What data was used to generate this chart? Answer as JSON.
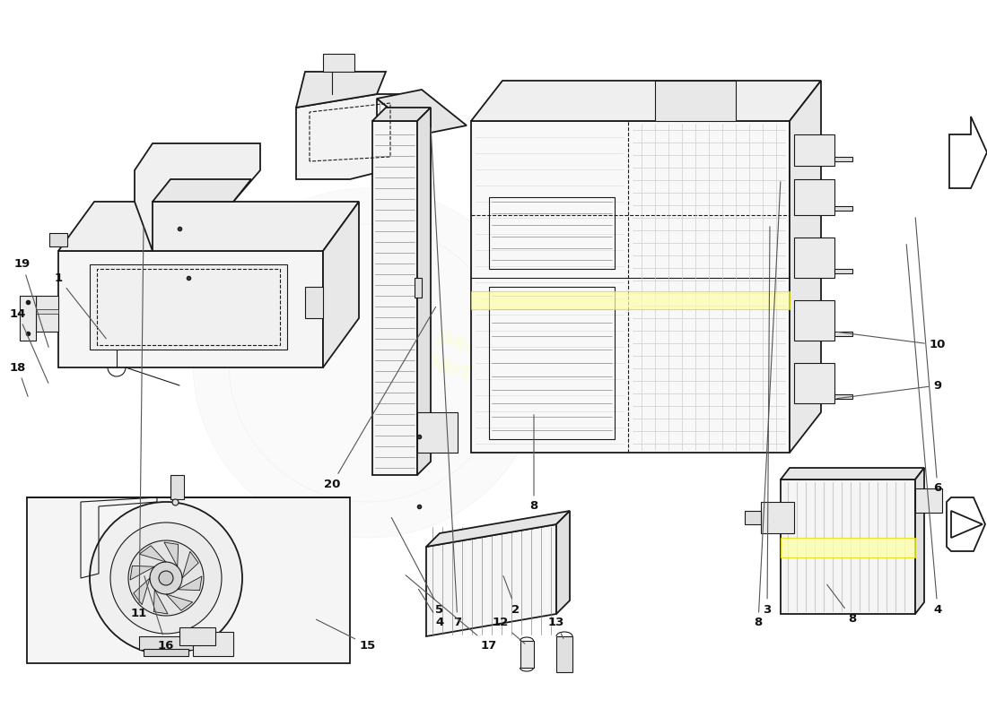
{
  "bg_color": "#ffffff",
  "line_color": "#1a1a1a",
  "light_line": "#888888",
  "very_light": "#cccccc",
  "yellow_color": "#ffffaa",
  "yellow_edge": "#dddd00",
  "watermark_text": "a passion for parts.com",
  "watermark_color": "#ffffdd",
  "label_color": "#111111",
  "label_fontsize": 9.5,
  "leader_color": "#555555",
  "logo_color": "#e8e8e8",
  "component_fill": "#f8f8f8",
  "shadow_fill": "#eeeeee"
}
